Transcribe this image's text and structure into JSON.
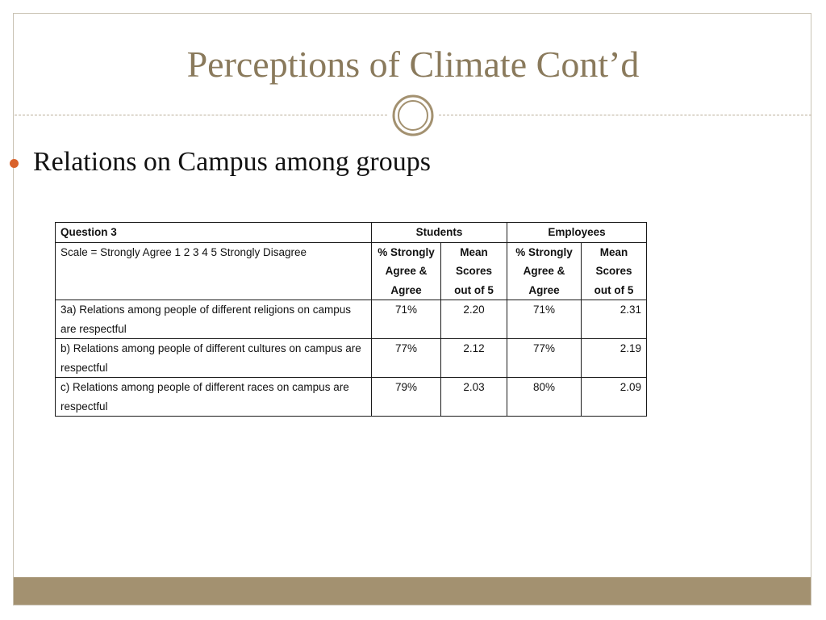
{
  "slide": {
    "title": "Perceptions of Climate Cont’d",
    "bullet": "Relations on Campus among groups",
    "colors": {
      "title": "#8a7a5c",
      "bullet": "#d9622b",
      "footer_band": "#a39170"
    },
    "ornament_icon": "double-ring-icon"
  },
  "table": {
    "header": {
      "question": "Question 3",
      "students": "Students",
      "employees": "Employees"
    },
    "subheader": {
      "scale": "Scale = Strongly Agree 1 2 3 4 5 Strongly Disagree",
      "students_pct": "% Strongly Agree & Agree",
      "students_mean": "Mean Scores out of 5",
      "employees_pct": "% Strongly Agree & Agree",
      "employees_mean": "Mean Scores out of 5"
    },
    "rows": [
      {
        "question": "3a) Relations among people of different religions on campus are respectful",
        "students_pct": "71%",
        "students_mean": "2.20",
        "employees_pct": "71%",
        "employees_mean": "2.31"
      },
      {
        "question": "b) Relations among people of different cultures on campus are respectful",
        "students_pct": "77%",
        "students_mean": "2.12",
        "employees_pct": "77%",
        "employees_mean": "2.19"
      },
      {
        "question": "c) Relations among people of different races on campus are respectful",
        "students_pct": "79%",
        "students_mean": "2.03",
        "employees_pct": "80%",
        "employees_mean": "2.09"
      }
    ]
  }
}
